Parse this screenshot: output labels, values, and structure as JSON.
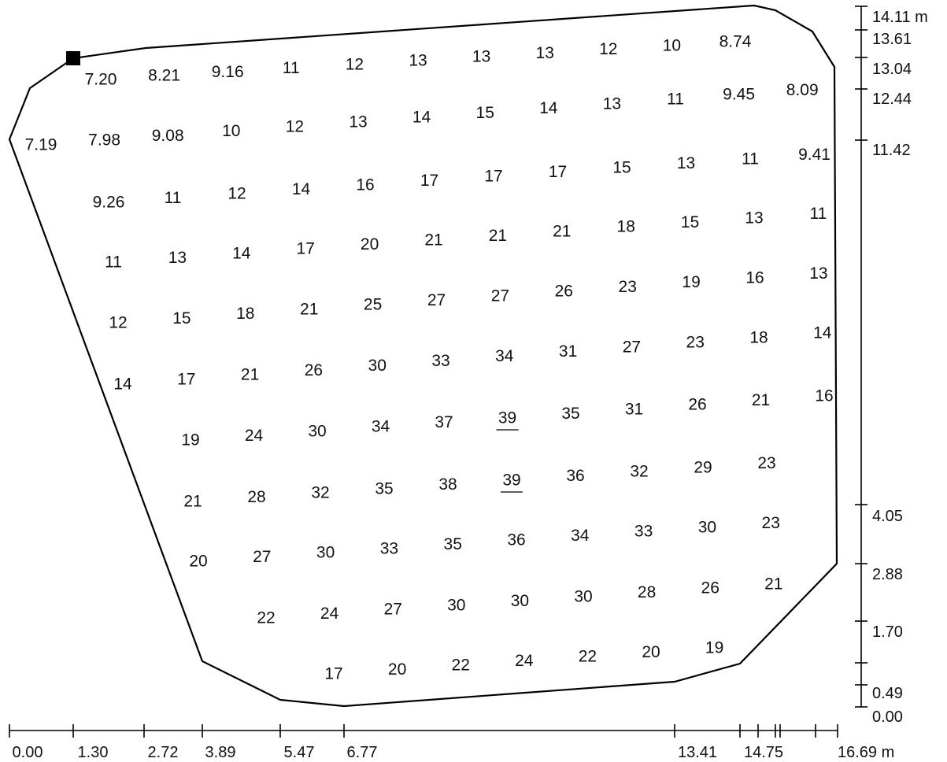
{
  "plan": {
    "outline_color": "#000000",
    "text_color": "#111111",
    "luminaire_marker": "filled-square",
    "grid_values": [
      {
        "row": 0,
        "labels": [
          "7.20",
          "8.21",
          "9.16",
          "11",
          "12",
          "13",
          "13",
          "13",
          "12",
          "10",
          "8.74"
        ]
      },
      {
        "row": 1,
        "labels": [
          "7.19",
          "7.98",
          "9.08",
          "10",
          "12",
          "13",
          "14",
          "15",
          "14",
          "13",
          "11",
          "9.45",
          "8.09"
        ]
      },
      {
        "row": 2,
        "labels": [
          "9.26",
          "11",
          "12",
          "14",
          "16",
          "17",
          "17",
          "17",
          "15",
          "13",
          "11",
          "9.41"
        ]
      },
      {
        "row": 3,
        "labels": [
          "11",
          "13",
          "14",
          "17",
          "20",
          "21",
          "21",
          "21",
          "18",
          "15",
          "13",
          "11"
        ]
      },
      {
        "row": 4,
        "labels": [
          "12",
          "15",
          "18",
          "21",
          "25",
          "27",
          "27",
          "26",
          "23",
          "19",
          "16",
          "13"
        ]
      },
      {
        "row": 5,
        "labels": [
          "14",
          "17",
          "21",
          "26",
          "30",
          "33",
          "34",
          "31",
          "27",
          "23",
          "18",
          "14"
        ]
      },
      {
        "row": 6,
        "labels": [
          "19",
          "24",
          "30",
          "34",
          "37",
          "39",
          "35",
          "31",
          "26",
          "21",
          "16"
        ]
      },
      {
        "row": 7,
        "labels": [
          "21",
          "28",
          "32",
          "35",
          "38",
          "39",
          "36",
          "32",
          "29",
          "23"
        ]
      },
      {
        "row": 8,
        "labels": [
          "20",
          "27",
          "30",
          "33",
          "35",
          "36",
          "34",
          "33",
          "30",
          "23"
        ]
      },
      {
        "row": 9,
        "labels": [
          "22",
          "24",
          "27",
          "30",
          "30",
          "30",
          "28",
          "26",
          "21"
        ]
      },
      {
        "row": 10,
        "labels": [
          "17",
          "20",
          "22",
          "24",
          "22",
          "20",
          "19"
        ]
      }
    ],
    "max_value_markers": [
      {
        "row": 6,
        "index": 5
      },
      {
        "row": 7,
        "index": 5
      }
    ],
    "x_axis": {
      "unit": "m",
      "labels": [
        "0.00",
        "1.30",
        "2.72",
        "3.89",
        "5.47",
        "6.77",
        "13.41",
        "14.75",
        "16.69 m"
      ]
    },
    "y_axis": {
      "unit": "m",
      "labels": [
        "14.11 m",
        "13.61",
        "13.04",
        "12.44",
        "11.42",
        "4.05",
        "2.88",
        "1.70",
        "0.49",
        "0.00"
      ]
    }
  }
}
